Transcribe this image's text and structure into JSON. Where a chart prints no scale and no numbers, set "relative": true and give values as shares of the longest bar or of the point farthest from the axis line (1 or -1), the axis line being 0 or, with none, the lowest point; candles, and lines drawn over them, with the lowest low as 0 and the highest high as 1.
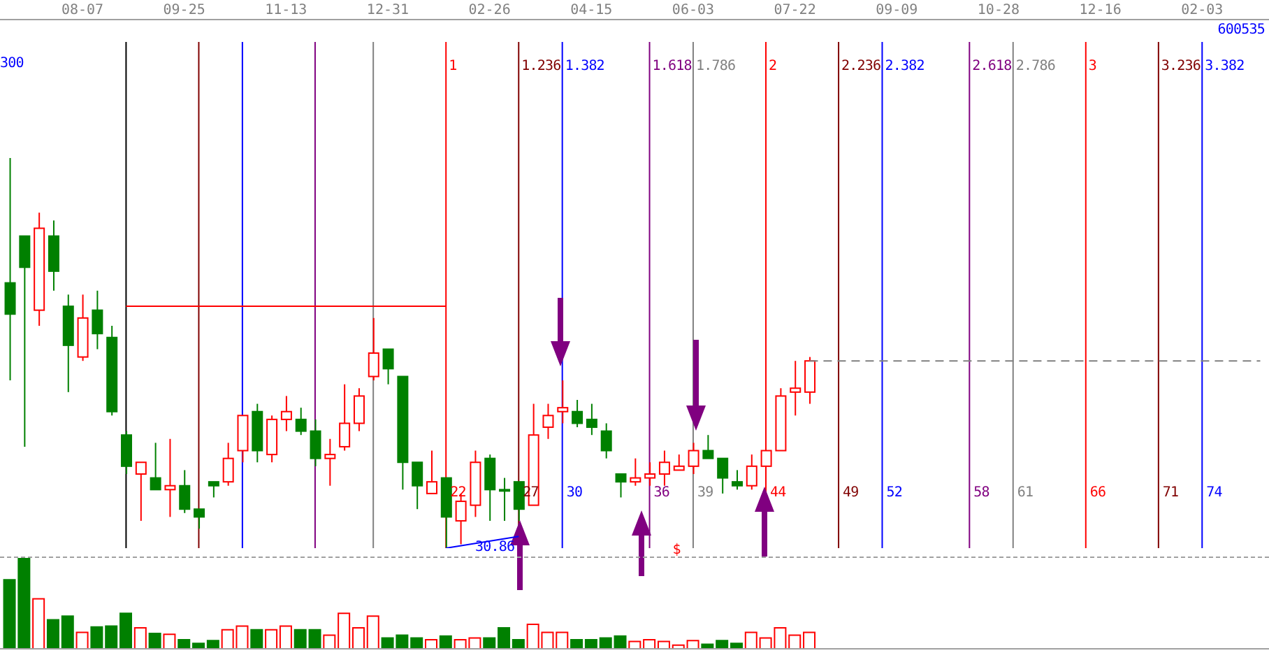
{
  "chart_data": [
    {
      "type": "candlestick",
      "relative": true,
      "tick_labels": "x",
      "categories": [
        null,
        null,
        null,
        null,
        null,
        "08-07",
        null,
        null,
        null,
        null,
        null,
        null,
        "09-25",
        null,
        null,
        null,
        null,
        null,
        null,
        "11-13",
        null,
        null,
        null,
        null,
        null,
        null,
        "12-31",
        null,
        null,
        null,
        null,
        null,
        null,
        "02-26",
        null,
        null,
        null,
        null,
        null,
        null,
        "04-15",
        null,
        null,
        null,
        null,
        null,
        null,
        "06-03",
        null,
        null,
        null,
        null,
        null,
        null,
        "07-22",
        null,
        null,
        null,
        null,
        null,
        null,
        "09-09",
        null,
        null,
        null,
        null,
        null,
        null,
        "10-28",
        null,
        null,
        null,
        null,
        null,
        null,
        "12-16",
        null,
        null,
        null,
        null,
        null,
        null,
        "02-03",
        null,
        null,
        null,
        null
      ],
      "series": [
        {
          "type": "candlestick",
          "ohlc": [
            [
              0.68,
              1.0,
              0.43,
              0.6
            ],
            [
              0.8,
              0.8,
              0.26,
              0.72
            ],
            [
              0.61,
              0.86,
              0.57,
              0.82
            ],
            [
              0.8,
              0.84,
              0.66,
              0.71
            ],
            [
              0.62,
              0.65,
              0.4,
              0.52
            ],
            [
              0.49,
              0.65,
              0.48,
              0.59
            ],
            [
              0.61,
              0.66,
              0.51,
              0.55
            ],
            [
              0.54,
              0.57,
              0.34,
              0.35
            ],
            [
              0.29,
              0.3,
              0.19,
              0.21
            ],
            [
              0.19,
              0.22,
              0.07,
              0.22
            ],
            [
              0.18,
              0.27,
              0.15,
              0.15
            ],
            [
              0.15,
              0.28,
              0.08,
              0.16
            ],
            [
              0.16,
              0.2,
              0.09,
              0.1
            ],
            [
              0.1,
              0.1,
              0.05,
              0.08
            ],
            [
              0.17,
              0.17,
              0.13,
              0.16
            ],
            [
              0.17,
              0.27,
              0.16,
              0.23
            ],
            [
              0.25,
              0.34,
              0.22,
              0.34
            ],
            [
              0.35,
              0.37,
              0.22,
              0.25
            ],
            [
              0.24,
              0.34,
              0.22,
              0.33
            ],
            [
              0.33,
              0.39,
              0.3,
              0.35
            ],
            [
              0.33,
              0.36,
              0.29,
              0.3
            ],
            [
              0.3,
              0.33,
              0.21,
              0.23
            ],
            [
              0.23,
              0.28,
              0.16,
              0.24
            ],
            [
              0.26,
              0.42,
              0.25,
              0.32
            ],
            [
              0.32,
              0.41,
              0.3,
              0.39
            ],
            [
              0.44,
              0.59,
              0.43,
              0.5
            ],
            [
              0.51,
              0.51,
              0.42,
              0.46
            ],
            [
              0.44,
              0.44,
              0.15,
              0.22
            ],
            [
              0.22,
              0.22,
              0.1,
              0.16
            ],
            [
              0.14,
              0.25,
              0.14,
              0.17
            ],
            [
              0.18,
              0.18,
              0.0,
              0.08
            ],
            [
              0.07,
              0.14,
              0.01,
              0.12
            ],
            [
              0.11,
              0.25,
              0.08,
              0.22
            ],
            [
              0.23,
              0.24,
              0.07,
              0.15
            ],
            [
              0.15,
              0.18,
              0.07,
              0.15
            ],
            [
              0.17,
              0.17,
              0.07,
              0.1
            ],
            [
              0.11,
              0.37,
              0.11,
              0.29
            ],
            [
              0.31,
              0.37,
              0.28,
              0.34
            ],
            [
              0.35,
              0.43,
              0.32,
              0.36
            ],
            [
              0.35,
              0.38,
              0.31,
              0.32
            ],
            [
              0.33,
              0.37,
              0.29,
              0.31
            ],
            [
              0.3,
              0.32,
              0.23,
              0.25
            ],
            [
              0.19,
              0.19,
              0.13,
              0.17
            ],
            [
              0.17,
              0.23,
              0.16,
              0.18
            ],
            [
              0.18,
              0.22,
              0.16,
              0.19
            ],
            [
              0.19,
              0.25,
              0.16,
              0.22
            ],
            [
              0.2,
              0.24,
              0.2,
              0.21
            ],
            [
              0.21,
              0.27,
              0.19,
              0.25
            ],
            [
              0.25,
              0.29,
              0.23,
              0.23
            ],
            [
              0.23,
              0.23,
              0.14,
              0.18
            ],
            [
              0.17,
              0.2,
              0.15,
              0.16
            ],
            [
              0.16,
              0.24,
              0.15,
              0.21
            ],
            [
              0.21,
              0.25,
              0.21,
              0.25
            ],
            [
              0.25,
              0.41,
              0.25,
              0.39
            ],
            [
              0.4,
              0.48,
              0.34,
              0.41
            ],
            [
              0.4,
              0.49,
              0.37,
              0.48
            ],
            null,
            null,
            null,
            null,
            null,
            null,
            null,
            null,
            null,
            null,
            null,
            null,
            null,
            null,
            null,
            null,
            null,
            null,
            null,
            null,
            null,
            null,
            null,
            null,
            null,
            null,
            null,
            null,
            null,
            null,
            null
          ],
          "colors": [
            "#008000",
            "#008000",
            "#ff0000",
            "#008000",
            "#008000",
            "#ff0000",
            "#008000",
            "#008000",
            "#008000",
            "#ff0000",
            "#008000",
            "#ff0000",
            "#008000",
            "#008000",
            "#008000",
            "#ff0000",
            "#ff0000",
            "#008000",
            "#ff0000",
            "#ff0000",
            "#008000",
            "#008000",
            "#ff0000",
            "#ff0000",
            "#ff0000",
            "#ff0000",
            "#008000",
            "#008000",
            "#008000",
            "#ff0000",
            "#008000",
            "#ff0000",
            "#ff0000",
            "#008000",
            "#008000",
            "#008000",
            "#ff0000",
            "#ff0000",
            "#ff0000",
            "#008000",
            "#008000",
            "#008000",
            "#008000",
            "#ff0000",
            "#ff0000",
            "#ff0000",
            "#ff0000",
            "#ff0000",
            "#008000",
            "#008000",
            "#008000",
            "#ff0000",
            "#ff0000",
            "#ff0000",
            "#ff0000",
            "#ff0000",
            null,
            null,
            null,
            null,
            null,
            null,
            null,
            null,
            null,
            null,
            null,
            null,
            null,
            null,
            null,
            null,
            null,
            null,
            null,
            null,
            null,
            null,
            null,
            null,
            null,
            null,
            null,
            null,
            null,
            null,
            null
          ]
        },
        {
          "type": "line",
          "color": "#ff0000",
          "values": [
            null,
            null,
            null,
            null,
            null,
            null,
            null,
            null,
            0.62,
            0.62,
            0.62,
            0.62,
            0.62,
            0.62,
            0.62,
            0.62,
            0.62,
            0.62,
            0.62,
            0.62,
            0.62,
            0.62,
            0.62,
            0.62,
            0.62,
            0.62,
            0.62,
            0.62,
            0.62,
            0.62,
            0.62,
            null,
            null,
            null,
            null,
            null,
            null,
            null,
            null,
            null,
            null,
            null,
            null,
            null,
            null,
            null,
            null,
            null,
            null,
            null,
            null,
            null,
            null,
            null,
            null,
            null,
            null,
            null,
            null,
            null,
            null,
            null,
            null,
            null,
            null,
            null,
            null,
            null,
            null,
            null,
            null,
            null,
            null,
            null,
            null,
            null,
            null,
            null,
            null,
            null,
            null,
            null,
            null,
            null,
            null,
            null,
            null
          ]
        },
        {
          "type": "line",
          "color": "#0000ff",
          "values": [
            null,
            null,
            null,
            null,
            null,
            null,
            null,
            null,
            null,
            null,
            null,
            null,
            null,
            null,
            null,
            null,
            null,
            null,
            null,
            null,
            null,
            null,
            null,
            null,
            null,
            null,
            null,
            null,
            null,
            null,
            0.0,
            null,
            null,
            null,
            null,
            0.03,
            null,
            null,
            null,
            null,
            null,
            null,
            null,
            null,
            null,
            null,
            null,
            null,
            null,
            null,
            null,
            null,
            null,
            null,
            null,
            null,
            null,
            null,
            null,
            null,
            null,
            null,
            null,
            null,
            null,
            null,
            null,
            null,
            null,
            null,
            null,
            null,
            null,
            null,
            null,
            null,
            null,
            null,
            null,
            null,
            null,
            null,
            null,
            null,
            null,
            null,
            null
          ]
        },
        {
          "type": "line",
          "color": "#808080",
          "line_style": "dashed",
          "values": [
            null,
            null,
            null,
            null,
            null,
            null,
            null,
            null,
            null,
            null,
            null,
            null,
            null,
            null,
            null,
            null,
            null,
            null,
            null,
            null,
            null,
            null,
            null,
            null,
            null,
            null,
            null,
            null,
            null,
            null,
            null,
            null,
            null,
            null,
            null,
            null,
            null,
            null,
            null,
            null,
            null,
            null,
            null,
            null,
            null,
            null,
            null,
            null,
            null,
            null,
            null,
            null,
            null,
            null,
            null,
            0.48,
            0.48,
            0.48,
            0.48,
            0.48,
            0.48,
            0.48,
            0.48,
            0.48,
            0.48,
            0.48,
            0.48,
            0.48,
            0.48,
            0.48,
            0.48,
            0.48,
            0.48,
            0.48,
            0.48,
            0.48,
            0.48,
            0.48,
            0.48,
            0.48,
            0.48,
            0.48,
            0.48,
            0.48,
            0.48,
            0.48,
            0.48
          ]
        }
      ],
      "annotations": [
        "300",
        "600535",
        "30.86",
        "$",
        "1",
        "22",
        "1.236",
        "27",
        "1.382",
        "30",
        "1.618",
        "36",
        "1.786",
        "39",
        "2",
        "44",
        "2.236",
        "49",
        "2.382",
        "52",
        "2.618",
        "58",
        "2.786",
        "61",
        "3",
        "66",
        "3.236",
        "71",
        "3.382",
        "74"
      ]
    },
    {
      "type": "bar",
      "relative": true,
      "tick_labels": false,
      "categories": [
        null,
        null,
        null,
        null,
        null,
        null,
        null,
        null,
        null,
        null,
        null,
        null,
        null,
        null,
        null,
        null,
        null,
        null,
        null,
        null,
        null,
        null,
        null,
        null,
        null,
        null,
        null,
        null,
        null,
        null,
        null,
        null,
        null,
        null,
        null,
        null,
        null,
        null,
        null,
        null,
        null,
        null,
        null,
        null,
        null,
        null,
        null,
        null,
        null,
        null,
        null,
        null,
        null,
        null,
        null,
        null,
        null,
        null,
        null,
        null,
        null,
        null,
        null,
        null,
        null,
        null,
        null,
        null,
        null,
        null,
        null,
        null,
        null,
        null,
        null,
        null,
        null,
        null,
        null,
        null,
        null,
        null,
        null,
        null,
        null,
        null,
        null
      ],
      "values": [
        0.76,
        1,
        0.55,
        0.32,
        0.36,
        0.18,
        0.24,
        0.25,
        0.39,
        0.23,
        0.17,
        0.16,
        0.1,
        0.06,
        0.09,
        0.21,
        0.25,
        0.21,
        0.21,
        0.25,
        0.21,
        0.21,
        0.15,
        0.39,
        0.23,
        0.36,
        0.12,
        0.15,
        0.12,
        0.1,
        0.14,
        0.1,
        0.12,
        0.12,
        0.23,
        0.1,
        0.27,
        0.18,
        0.18,
        0.1,
        0.1,
        0.12,
        0.14,
        0.08,
        0.1,
        0.08,
        0.04,
        0.09,
        0.05,
        0.09,
        0.06,
        0.18,
        0.12,
        0.23,
        0.15,
        0.18,
        null,
        null,
        null,
        null,
        null,
        null,
        null,
        null,
        null,
        null,
        null,
        null,
        null,
        null,
        null,
        null,
        null,
        null,
        null,
        null,
        null,
        null,
        null,
        null,
        null,
        null,
        null,
        null,
        null,
        null,
        null
      ],
      "colors": [
        "#008000",
        "#008000",
        "#ff0000",
        "#008000",
        "#008000",
        "#ff0000",
        "#008000",
        "#008000",
        "#008000",
        "#ff0000",
        "#008000",
        "#ff0000",
        "#008000",
        "#008000",
        "#008000",
        "#ff0000",
        "#ff0000",
        "#008000",
        "#ff0000",
        "#ff0000",
        "#008000",
        "#008000",
        "#ff0000",
        "#ff0000",
        "#ff0000",
        "#ff0000",
        "#008000",
        "#008000",
        "#008000",
        "#ff0000",
        "#008000",
        "#ff0000",
        "#ff0000",
        "#008000",
        "#008000",
        "#008000",
        "#ff0000",
        "#ff0000",
        "#ff0000",
        "#008000",
        "#008000",
        "#008000",
        "#008000",
        "#ff0000",
        "#ff0000",
        "#ff0000",
        "#ff0000",
        "#ff0000",
        "#008000",
        "#008000",
        "#008000",
        "#ff0000",
        "#ff0000",
        "#ff0000",
        "#ff0000",
        "#ff0000",
        null,
        null,
        null,
        null,
        null,
        null,
        null,
        null,
        null,
        null,
        null,
        null,
        null,
        null,
        null,
        null,
        null,
        null,
        null,
        null,
        null,
        null,
        null,
        null,
        null,
        null,
        null,
        null,
        null,
        null,
        null
      ]
    }
  ]
}
